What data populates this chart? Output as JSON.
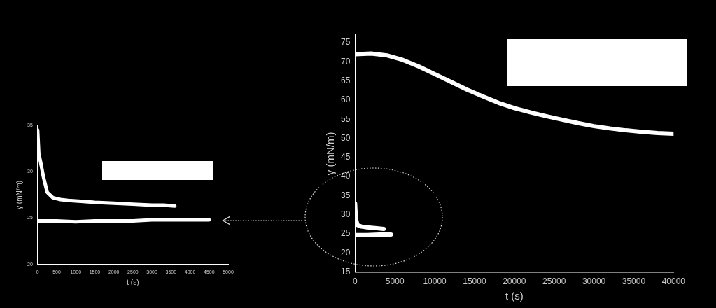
{
  "chart_data": [
    {
      "type": "line",
      "xlabel": "t (s)",
      "ylabel": "γ (mN/m)",
      "xlim": [
        0,
        5000
      ],
      "xticks": [
        0,
        500,
        1000,
        1500,
        2000,
        2500,
        3000,
        3500,
        4000,
        4500,
        5000
      ],
      "ylim": [
        20,
        35
      ],
      "yticks": [
        20,
        25,
        30,
        35
      ],
      "legend": false,
      "marker": "none",
      "series": [
        {
          "color": "#ffffff",
          "x": [
            0,
            30,
            80,
            150,
            250,
            400,
            600,
            800,
            1200,
            1500,
            2000,
            2500,
            3000,
            3300,
            3600
          ],
          "values": [
            34.5,
            32,
            31,
            29.5,
            27.8,
            27.2,
            27,
            26.9,
            26.8,
            26.7,
            26.6,
            26.5,
            26.4,
            26.4,
            26.3
          ]
        },
        {
          "color": "#ffffff",
          "x": [
            0,
            500,
            1000,
            1500,
            2000,
            2500,
            3000,
            3500,
            4000,
            4500
          ],
          "values": [
            24.7,
            24.7,
            24.6,
            24.7,
            24.7,
            24.7,
            24.8,
            24.8,
            24.8,
            24.8
          ]
        }
      ]
    },
    {
      "type": "line",
      "xlabel": "t (s)",
      "ylabel": "γ (mN/m)",
      "xlim": [
        0,
        40000
      ],
      "xticks": [
        0,
        5000,
        10000,
        15000,
        20000,
        25000,
        30000,
        35000,
        40000
      ],
      "ylim": [
        15,
        77
      ],
      "yticks": [
        15,
        20,
        25,
        30,
        35,
        40,
        45,
        50,
        55,
        60,
        65,
        70,
        75
      ],
      "legend": false,
      "marker": "none",
      "series": [
        {
          "color": "#ffffff",
          "x": [
            0,
            2000,
            4000,
            6000,
            8000,
            10000,
            12000,
            14000,
            16000,
            18000,
            20000,
            22000,
            24000,
            26000,
            28000,
            30000,
            32000,
            34000,
            36000,
            38000,
            40000
          ],
          "values": [
            72,
            72.2,
            71.7,
            70.5,
            68.8,
            66.8,
            64.8,
            62.8,
            61,
            59.3,
            57.9,
            56.8,
            55.8,
            54.9,
            54,
            53.2,
            52.6,
            52.1,
            51.7,
            51.4,
            51.2
          ]
        },
        {
          "color": "#ffffff",
          "x": [
            0,
            100,
            300,
            800,
            1500,
            2500,
            3600
          ],
          "values": [
            33,
            29,
            27.3,
            26.9,
            26.7,
            26.5,
            26.3
          ]
        },
        {
          "color": "#ffffff",
          "x": [
            0,
            1500,
            3000,
            4500
          ],
          "values": [
            24.7,
            24.7,
            24.8,
            24.8
          ]
        }
      ]
    }
  ]
}
